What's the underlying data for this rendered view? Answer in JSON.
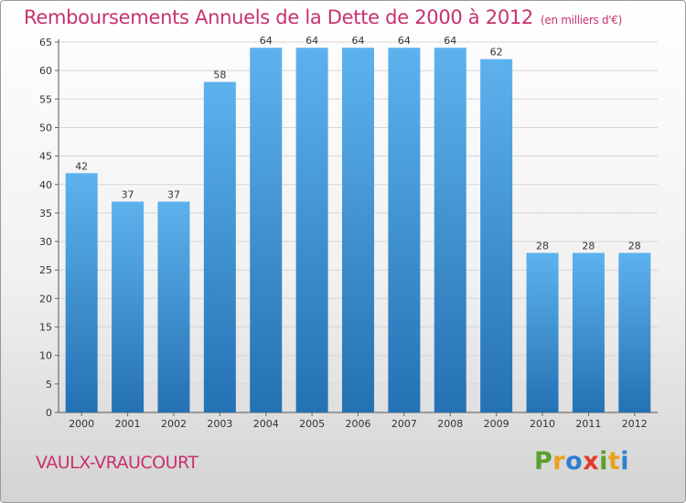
{
  "header": {
    "title": "Remboursements Annuels de la Dette de 2000 à 2012",
    "unit": "(en milliers d'€)"
  },
  "footer": {
    "place": "VAULX-VRAUCOURT"
  },
  "logo": {
    "text": "Proxiti"
  },
  "colors": {
    "title": "#c8326e",
    "bar_top": "#5db2ee",
    "bar_bottom": "#2471b3"
  },
  "chart_data": {
    "type": "bar",
    "title": "Remboursements Annuels de la Dette de 2000 à 2012",
    "subtitle": "(en milliers d'€)",
    "xlabel": "",
    "ylabel": "",
    "categories": [
      "2000",
      "2001",
      "2002",
      "2003",
      "2004",
      "2005",
      "2006",
      "2007",
      "2008",
      "2009",
      "2010",
      "2011",
      "2012"
    ],
    "values": [
      42,
      37,
      37,
      58,
      64,
      64,
      64,
      64,
      64,
      62,
      28,
      28,
      28
    ],
    "data_labels": [
      "42",
      "37",
      "37",
      "58",
      "64",
      "64",
      "64",
      "64",
      "64",
      "62",
      "28",
      "28",
      "28"
    ],
    "ylim": [
      0,
      65
    ],
    "yticks": [
      0,
      5,
      10,
      15,
      20,
      25,
      30,
      35,
      40,
      45,
      50,
      55,
      60,
      65
    ],
    "grid": true,
    "legend": "none"
  }
}
